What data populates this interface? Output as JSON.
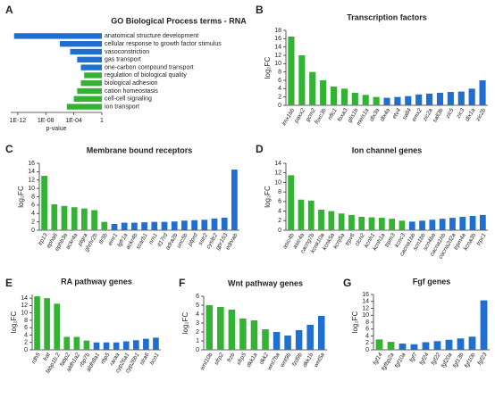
{
  "chart_data": [
    {
      "type": "hbar",
      "panel": "A",
      "title": "GO Biological Process terms - RNA",
      "x_label": "p-value",
      "log_x": true,
      "categories": [
        "anatomical structure development",
        "cellular response to growth factor stimulus",
        "vasoconstriction",
        "gas transport",
        "one-carbon compound transport",
        "regulation of biological quality",
        "biological adhesion",
        "cation homeostasis",
        "cell-cell signaling",
        "ion transport"
      ],
      "values": [
        3e-13,
        1e-06,
        3e-05,
        0.0003,
        0.001,
        0.003,
        0.001,
        0.0003,
        0.0001,
        1e-05
      ],
      "colors": [
        "#1f6fd1",
        "#1f6fd1",
        "#1f6fd1",
        "#1f6fd1",
        "#1f6fd1",
        "#33b233",
        "#33b233",
        "#33b233",
        "#33b233",
        "#33b233"
      ],
      "xlim": [
        1e-13,
        1
      ],
      "xticks": [
        {
          "value": 1e-12,
          "label": "1E-12"
        },
        {
          "value": 1e-08,
          "label": "1E-08"
        },
        {
          "value": 0.0001,
          "label": "1E-04"
        },
        1
      ]
    },
    {
      "type": "bar",
      "panel": "B",
      "title": "Transcription factors",
      "y_label": "log₂FC",
      "categories": [
        "lmx1bb",
        "paxx2",
        "gcm2",
        "foxc3b",
        "nfic1",
        "foxa3",
        "glis1b",
        "meis1a",
        "dlx3a",
        "dlx4a",
        "etv4",
        "sall4",
        "emx2",
        "zic2a",
        "sall3b",
        "zic5",
        "zic3",
        "dlx1a",
        "zic2b"
      ],
      "values": [
        16.5,
        12,
        8,
        6,
        4.5,
        4,
        3,
        2.5,
        2,
        1.8,
        2,
        2.2,
        2.6,
        2.8,
        3,
        3.2,
        3.3,
        4,
        6
      ],
      "colors": [
        "#33b233",
        "#33b233",
        "#33b233",
        "#33b233",
        "#33b233",
        "#33b233",
        "#33b233",
        "#33b233",
        "#33b233",
        "#1f6fd1",
        "#1f6fd1",
        "#1f6fd1",
        "#1f6fd1",
        "#1f6fd1",
        "#1f6fd1",
        "#1f6fd1",
        "#1f6fd1",
        "#1f6fd1",
        "#1f6fd1"
      ],
      "ylim": [
        0,
        18
      ],
      "yticks": [
        0,
        2,
        4,
        6,
        8,
        10,
        12,
        14,
        16,
        18
      ]
    },
    {
      "type": "bar",
      "panel": "C",
      "title": "Membrane bound receptors",
      "y_label": "log₂FC",
      "categories": [
        "lrp13",
        "epha6",
        "ephb3a",
        "ackr4a",
        "ptgra",
        "ghrhr2b",
        "tlr5b",
        "emr1",
        "lgfr1a",
        "ackr4b",
        "scarb1",
        "nrn1",
        "il17rd",
        "adra2b",
        "unc5b",
        "ptprd",
        "sstr2",
        "cysltr2",
        "gpr153",
        "ednrab"
      ],
      "values": [
        13,
        6.2,
        5.8,
        5.5,
        5.2,
        4.8,
        2,
        1.5,
        1.8,
        1.8,
        1.9,
        2,
        2,
        2.1,
        2.3,
        2.4,
        2.5,
        2.8,
        3,
        14.5
      ],
      "colors": [
        "#33b233",
        "#33b233",
        "#33b233",
        "#33b233",
        "#33b233",
        "#33b233",
        "#33b233",
        "#1f6fd1",
        "#1f6fd1",
        "#1f6fd1",
        "#1f6fd1",
        "#1f6fd1",
        "#1f6fd1",
        "#1f6fd1",
        "#1f6fd1",
        "#1f6fd1",
        "#1f6fd1",
        "#1f6fd1",
        "#1f6fd1",
        "#1f6fd1"
      ],
      "ylim": [
        0,
        16
      ],
      "yticks": [
        0,
        2,
        4,
        6,
        8,
        10,
        12,
        14,
        16
      ]
    },
    {
      "type": "bar",
      "panel": "D",
      "title": "Ion channel genes",
      "y_label": "log₂FC",
      "categories": [
        "asic4b",
        "asic4a",
        "cacng7b",
        "kcnk10a",
        "kcnk5a",
        "kcnj5a",
        "trpv6",
        "clcn2",
        "kcnh1",
        "kcnh1a",
        "trpm3",
        "kcnc3",
        "cacna1bb",
        "scn1bb",
        "scn4ba",
        "cacna1hb",
        "cacna2d2a",
        "trpm4a",
        "kcna3b",
        "trpc1"
      ],
      "values": [
        11.5,
        6.4,
        6.2,
        4.3,
        4,
        3.5,
        3.2,
        2.8,
        2.7,
        2.6,
        2.4,
        2,
        1.8,
        2,
        2.2,
        2.4,
        2.6,
        2.8,
        3,
        3.2
      ],
      "colors": [
        "#33b233",
        "#33b233",
        "#33b233",
        "#33b233",
        "#33b233",
        "#33b233",
        "#33b233",
        "#33b233",
        "#33b233",
        "#33b233",
        "#33b233",
        "#33b233",
        "#1f6fd1",
        "#1f6fd1",
        "#1f6fd1",
        "#1f6fd1",
        "#1f6fd1",
        "#1f6fd1",
        "#1f6fd1",
        "#1f6fd1"
      ],
      "ylim": [
        0,
        14
      ],
      "yticks": [
        0,
        2,
        4,
        6,
        8,
        10,
        12,
        14
      ]
    },
    {
      "type": "bar",
      "panel": "E",
      "title": "RA pathway genes",
      "y_label": "log₂FC",
      "categories": [
        "rdh5",
        "lrat",
        "fabp1b.2",
        "fabp2",
        "aldh1a2",
        "rbp7b",
        "aldh8a1",
        "rbp5",
        "raraa",
        "cyp26a1",
        "cyp26b1",
        "stra6",
        "bco1"
      ],
      "values": [
        14.5,
        14,
        12.5,
        3.5,
        3.5,
        2.5,
        2,
        2,
        2,
        2.3,
        2.6,
        3,
        3.3
      ],
      "colors": [
        "#33b233",
        "#33b233",
        "#33b233",
        "#33b233",
        "#33b233",
        "#33b233",
        "#1f6fd1",
        "#1f6fd1",
        "#1f6fd1",
        "#1f6fd1",
        "#1f6fd1",
        "#1f6fd1",
        "#1f6fd1"
      ],
      "ylim": [
        0,
        15
      ],
      "yticks": [
        0,
        2,
        4,
        6,
        8,
        10,
        12,
        14
      ]
    },
    {
      "type": "bar",
      "panel": "F",
      "title": "Wnt pathway genes",
      "y_label": "log₂FC",
      "categories": [
        "wnt10b",
        "sfrp2",
        "frzb",
        "sfrp5",
        "dkk1a",
        "dkk2",
        "wnt7ba",
        "wnt9b",
        "fzd9b",
        "dkk1b",
        "wnt5a"
      ],
      "values": [
        5,
        4.8,
        4.5,
        3.5,
        3.3,
        2.3,
        2,
        1.6,
        2.2,
        2.8,
        3.8
      ],
      "colors": [
        "#33b233",
        "#33b233",
        "#33b233",
        "#33b233",
        "#33b233",
        "#33b233",
        "#1f6fd1",
        "#1f6fd1",
        "#1f6fd1",
        "#1f6fd1",
        "#1f6fd1"
      ],
      "ylim": [
        0,
        6
      ],
      "yticks": [
        0,
        1,
        2,
        3,
        4,
        5,
        6
      ]
    },
    {
      "type": "bar",
      "panel": "G",
      "title": "Fgf genes",
      "y_label": "log₂FC",
      "categories": [
        "fgf14",
        "fgfbp2a",
        "fgf10a",
        "fgf7",
        "fgf24",
        "fgf22",
        "fgf20a",
        "fgf13b",
        "fgf10b",
        "fgf23"
      ],
      "values": [
        3,
        2.3,
        1.8,
        1.6,
        2.2,
        2.5,
        2.9,
        3.3,
        3.8,
        14.3
      ],
      "colors": [
        "#33b233",
        "#33b233",
        "#1f6fd1",
        "#1f6fd1",
        "#1f6fd1",
        "#1f6fd1",
        "#1f6fd1",
        "#1f6fd1",
        "#1f6fd1",
        "#1f6fd1"
      ],
      "ylim": [
        0,
        16
      ],
      "yticks": [
        0,
        2,
        4,
        6,
        8,
        10,
        12,
        14,
        16
      ]
    }
  ]
}
